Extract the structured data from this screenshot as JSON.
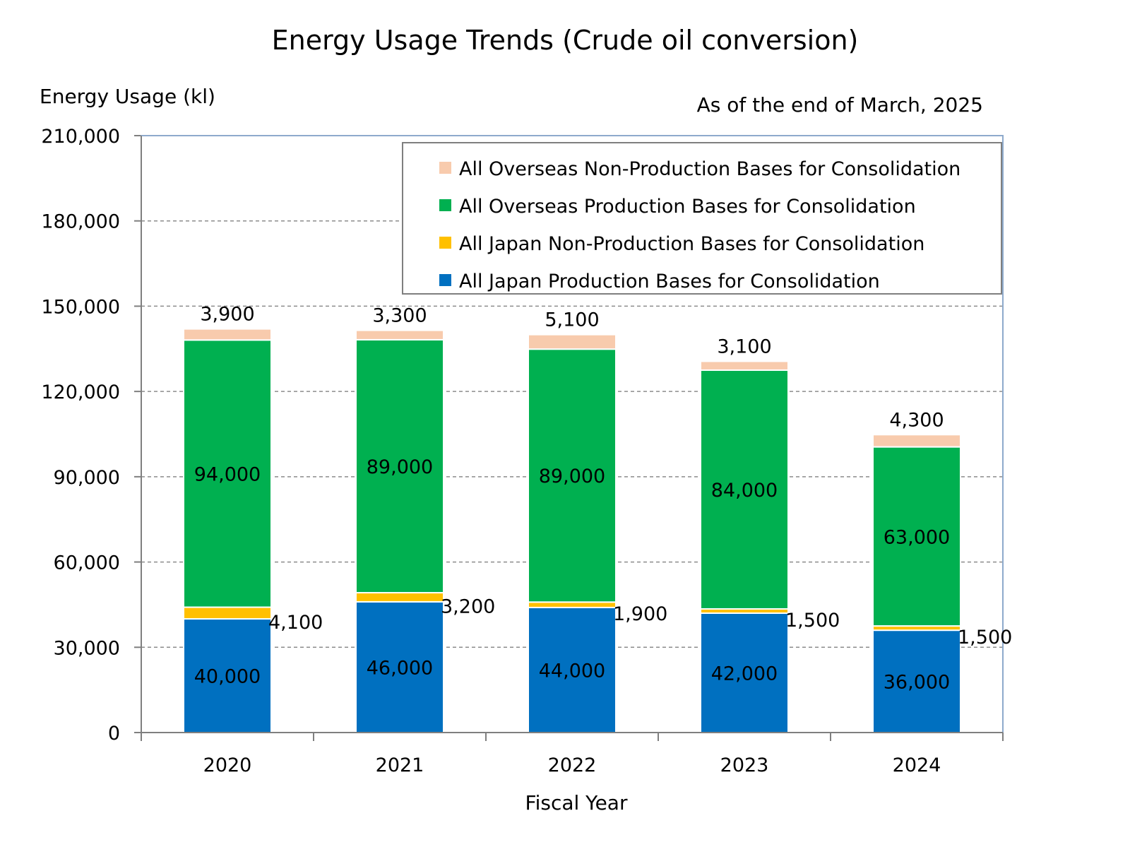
{
  "chart_data": {
    "type": "bar",
    "stacked": true,
    "title": "Energy Usage Trends (Crude oil conversion)",
    "subtitle": "As of the end of March, 2025",
    "ylabel": "Energy Usage (kl)",
    "xlabel": "Fiscal Year",
    "ylim": [
      0,
      210000
    ],
    "yticks": [
      0,
      30000,
      60000,
      90000,
      120000,
      150000,
      180000,
      210000
    ],
    "ytick_labels": [
      "0",
      "30,000",
      "60,000",
      "90,000",
      "120,000",
      "150,000",
      "180,000",
      "210,000"
    ],
    "grid": "horizontal dashed",
    "legend_position": "top-right",
    "categories": [
      "2020",
      "2021",
      "2022",
      "2023",
      "2024"
    ],
    "series": [
      {
        "name": "All Japan Production Bases for Consolidation",
        "color": "#0070C0",
        "values": [
          40000,
          46000,
          44000,
          42000,
          36000
        ],
        "labels": [
          "40,000",
          "46,000",
          "44,000",
          "42,000",
          "36,000"
        ]
      },
      {
        "name": "All Japan Non-Production Bases for Consolidation",
        "color": "#FFC000",
        "values": [
          4100,
          3200,
          1900,
          1500,
          1500
        ],
        "labels": [
          "4,100",
          "3,200",
          "1,900",
          "1,500",
          "1,500"
        ]
      },
      {
        "name": "All Overseas Production Bases for Consolidation",
        "color": "#00B050",
        "values": [
          94000,
          89000,
          89000,
          84000,
          63000
        ],
        "labels": [
          "94,000",
          "89,000",
          "89,000",
          "84,000",
          "63,000"
        ]
      },
      {
        "name": "All Overseas Non-Production Bases for Consolidation",
        "color": "#F8CBAD",
        "values": [
          3900,
          3300,
          5100,
          3100,
          4300
        ],
        "labels": [
          "3,900",
          "3,300",
          "5,100",
          "3,100",
          "4,300"
        ]
      }
    ]
  }
}
